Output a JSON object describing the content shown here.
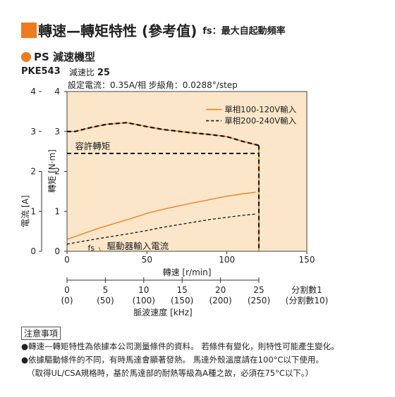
{
  "header": {
    "title": "轉速—轉矩特性 (參考值)",
    "suffix": "fs：最大自起動頻率",
    "subtitle": "PS 減速機型",
    "model": "PKE543",
    "ratio_label": "減速比",
    "ratio_value": "25",
    "settings": "設定電流：0.35A/相  步級角：0.0288°/step"
  },
  "colors": {
    "accent": "#f07a1e",
    "plot_bg": "#fbe6c9",
    "dashed": "#111111"
  },
  "chart_data": {
    "type": "line",
    "title": "轉速—轉矩特性 (參考值)",
    "xlabel": "轉速 [r/min]",
    "ylabel_left": "電流 [A]",
    "ylabel_right": "轉矩 [N·m]",
    "xlim": [
      0,
      150
    ],
    "ylim": [
      0,
      4
    ],
    "x_ticks": [
      "0",
      "50",
      "100",
      "150"
    ],
    "y_ticks": [
      "0",
      "1",
      "2",
      "3",
      "4"
    ],
    "grid": false,
    "legend_position": "top-right",
    "series": [
      {
        "name": "單相100-120V輸入",
        "kind": "torque",
        "x": [
          0,
          5,
          15,
          25,
          37,
          40,
          50,
          60,
          75,
          90,
          100,
          110,
          120
        ],
        "y": [
          3.0,
          3.0,
          3.1,
          3.18,
          3.22,
          3.2,
          3.12,
          3.05,
          2.98,
          2.92,
          2.87,
          2.75,
          2.65
        ]
      },
      {
        "name": "單相200-240V輸入",
        "kind": "torque",
        "x": [
          0,
          5,
          15,
          25,
          37,
          40,
          50,
          60,
          75,
          90,
          100,
          110,
          120
        ],
        "y": [
          3.0,
          3.0,
          3.1,
          3.18,
          3.22,
          3.2,
          3.12,
          3.05,
          2.98,
          2.92,
          2.87,
          2.75,
          2.65
        ]
      },
      {
        "name": "單相100-120V輸入",
        "kind": "current",
        "x": [
          0,
          20,
          40,
          50,
          60,
          75,
          90,
          100,
          110,
          118
        ],
        "y": [
          0.3,
          0.58,
          0.82,
          0.95,
          1.05,
          1.18,
          1.3,
          1.38,
          1.44,
          1.48
        ]
      },
      {
        "name": "單相200-240V輸入",
        "kind": "current",
        "x": [
          0,
          20,
          40,
          50,
          60,
          75,
          90,
          100,
          110,
          118
        ],
        "y": [
          0.18,
          0.32,
          0.45,
          0.52,
          0.6,
          0.7,
          0.8,
          0.85,
          0.9,
          0.93
        ]
      },
      {
        "name": "fs",
        "kind": "fs",
        "x": [
          20,
          21
        ],
        "y": [
          0.1,
          0
        ]
      }
    ],
    "cutoff_x": 120,
    "allowable_torque": 2.45,
    "annotations": {
      "allowable": "容許轉矩",
      "driver_current": "驅動器輸入電流",
      "fs": "fs"
    },
    "pulse_axis": {
      "label": "脈波速度 [kHz]",
      "divisions_1": [
        "0",
        "5",
        "10",
        "15",
        "20",
        "25"
      ],
      "divisions_10": [
        "(0)",
        "(50)",
        "(100)",
        "(150)",
        "(200)",
        "(250)"
      ],
      "label_div1": "分割數1",
      "label_div10": "(分割數10)"
    }
  },
  "notes": {
    "heading": "注意事項",
    "items": [
      "●轉速—轉矩特性為依據本公司測量條件的資料。 若條件有變化，則特性可能產生變化。",
      "●依據驅動條件的不同，有時馬達會顯著發熱。 馬達外殼溫度請在100°C以下使用。",
      "（取得UL/CSA規格時，基於馬達部的耐熱等級為A種之故，必須在75°C以下。）"
    ]
  }
}
